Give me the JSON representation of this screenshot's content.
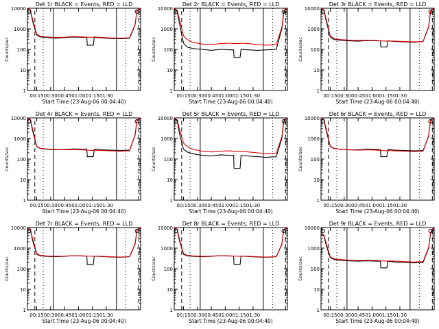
{
  "colors": {
    "events": "#000000",
    "lld": "#e00000",
    "axes": "#000000"
  },
  "chart_data": [
    {
      "type": "line",
      "title": "Det 1r BLACK = Events, RED = LLD",
      "xlabel": "Start Time (23-Aug-06 00:04:40)",
      "ylabel": "Counts/sec",
      "yscale": "log",
      "ylim": [
        1,
        10000
      ],
      "xticks": [
        "00:15",
        "00:30",
        "00:45",
        "01:00",
        "01:15",
        "01:30"
      ],
      "yticks": [
        "1",
        "10",
        "100",
        "1000",
        "10000"
      ],
      "series": [
        {
          "x": [
            0,
            3,
            6,
            10,
            14,
            20,
            30,
            40,
            50,
            60,
            64,
            64.5,
            71,
            72,
            80,
            90,
            100,
            110,
            116,
            118,
            120,
            122
          ],
          "values": [
            10000,
            8000,
            2000,
            500,
            400,
            380,
            350,
            370,
            400,
            380,
            380,
            160,
            160,
            380,
            360,
            340,
            330,
            350,
            1500,
            7000,
            9000,
            10000
          ]
        },
        {
          "x": [
            0,
            3,
            6,
            10,
            14,
            20,
            30,
            40,
            50,
            60,
            64,
            71,
            72,
            80,
            90,
            100,
            110,
            116,
            118,
            120,
            122
          ],
          "values": [
            10000,
            8500,
            2500,
            550,
            430,
            400,
            380,
            390,
            420,
            400,
            390,
            390,
            400,
            380,
            360,
            350,
            370,
            1600,
            7500,
            9500,
            10000
          ]
        }
      ]
    },
    {
      "type": "line",
      "title": "Det 2r BLACK = Events, RED = LLD",
      "xlabel": "Start Time (23-Aug-06 00:04:40)",
      "ylabel": "Counts/sec",
      "yscale": "log",
      "ylim": [
        1,
        10000
      ],
      "xticks": [
        "00:15",
        "00:30",
        "00:45",
        "01:00",
        "01:15",
        "01:30"
      ],
      "yticks": [
        "1",
        "10",
        "100",
        "1000",
        "10000"
      ],
      "series": [
        {
          "x": [
            0,
            3,
            6,
            10,
            14,
            20,
            30,
            40,
            50,
            60,
            64,
            64.5,
            71,
            72,
            80,
            90,
            100,
            110,
            116,
            118,
            120,
            122
          ],
          "values": [
            10000,
            7000,
            1500,
            200,
            130,
            110,
            100,
            90,
            100,
            95,
            95,
            40,
            40,
            100,
            95,
            90,
            95,
            100,
            1000,
            6000,
            9000,
            10000
          ]
        },
        {
          "x": [
            0,
            3,
            6,
            10,
            14,
            20,
            30,
            40,
            50,
            60,
            64,
            71,
            72,
            80,
            90,
            100,
            110,
            116,
            118,
            120,
            122
          ],
          "values": [
            10000,
            8000,
            2500,
            450,
            300,
            220,
            180,
            170,
            190,
            200,
            190,
            190,
            200,
            190,
            170,
            160,
            170,
            1200,
            7000,
            9500,
            10000
          ]
        }
      ]
    },
    {
      "type": "line",
      "title": "Det 3r BLACK = Events, RED = LLD",
      "xlabel": "Start Time (23-Aug-06 00:04:40)",
      "ylabel": "Counts/sec",
      "yscale": "log",
      "ylim": [
        1,
        10000
      ],
      "xticks": [
        "00:15",
        "00:30",
        "00:45",
        "01:00",
        "01:15",
        "01:30"
      ],
      "yticks": [
        "1",
        "10",
        "100",
        "1000",
        "10000"
      ],
      "series": [
        {
          "x": [
            0,
            3,
            6,
            10,
            14,
            20,
            30,
            40,
            50,
            60,
            64,
            64.5,
            71,
            72,
            80,
            90,
            100,
            110,
            116,
            118,
            120,
            122
          ],
          "values": [
            10000,
            8000,
            2000,
            400,
            300,
            280,
            260,
            250,
            270,
            260,
            260,
            130,
            130,
            260,
            240,
            230,
            220,
            240,
            1200,
            6500,
            9000,
            10000
          ]
        },
        {
          "x": [
            0,
            3,
            6,
            10,
            14,
            20,
            30,
            40,
            50,
            60,
            64,
            71,
            72,
            80,
            90,
            100,
            110,
            116,
            118,
            120,
            122
          ],
          "values": [
            10000,
            8500,
            2500,
            450,
            330,
            300,
            280,
            270,
            280,
            270,
            260,
            250,
            260,
            250,
            240,
            230,
            240,
            1300,
            7000,
            9500,
            10000
          ]
        }
      ]
    },
    {
      "type": "line",
      "title": "Det 4r BLACK = Events, RED = LLD",
      "xlabel": "Start Time (23-Aug-06 00:04:40)",
      "ylabel": "Counts/sec",
      "yscale": "log",
      "ylim": [
        1,
        10000
      ],
      "xticks": [
        "00:15",
        "00:30",
        "00:45",
        "01:00",
        "01:15",
        "01:30"
      ],
      "yticks": [
        "1",
        "10",
        "100",
        "1000",
        "10000"
      ],
      "series": [
        {
          "x": [
            0,
            3,
            6,
            10,
            14,
            20,
            30,
            40,
            50,
            60,
            64,
            64.5,
            71,
            72,
            80,
            90,
            100,
            110,
            116,
            118,
            120,
            122
          ],
          "values": [
            10000,
            8000,
            2000,
            400,
            320,
            300,
            280,
            290,
            310,
            300,
            300,
            130,
            130,
            300,
            280,
            270,
            260,
            270,
            1400,
            7000,
            9000,
            10000
          ]
        },
        {
          "x": [
            0,
            3,
            6,
            10,
            14,
            20,
            30,
            40,
            50,
            60,
            64,
            71,
            72,
            80,
            90,
            100,
            110,
            116,
            118,
            120,
            122
          ],
          "values": [
            10000,
            8500,
            2500,
            420,
            330,
            310,
            290,
            280,
            290,
            280,
            270,
            260,
            270,
            260,
            250,
            240,
            250,
            1500,
            7500,
            9500,
            10000
          ]
        }
      ]
    },
    {
      "type": "line",
      "title": "Det 5r BLACK = Events, RED = LLD",
      "xlabel": "Start Time (23-Aug-06 00:04:40)",
      "ylabel": "Counts/sec",
      "yscale": "log",
      "ylim": [
        1,
        10000
      ],
      "xticks": [
        "00:15",
        "00:30",
        "00:45",
        "01:00",
        "01:15",
        "01:30"
      ],
      "yticks": [
        "1",
        "10",
        "100",
        "1000",
        "10000"
      ],
      "series": [
        {
          "x": [
            0,
            3,
            6,
            10,
            14,
            20,
            30,
            40,
            50,
            60,
            64,
            64.5,
            71,
            72,
            80,
            90,
            100,
            110,
            116,
            118,
            120,
            122
          ],
          "values": [
            10000,
            7000,
            1500,
            300,
            220,
            180,
            150,
            140,
            160,
            150,
            150,
            35,
            35,
            150,
            140,
            130,
            120,
            130,
            1000,
            6000,
            9000,
            10000
          ]
        },
        {
          "x": [
            0,
            3,
            6,
            10,
            14,
            20,
            30,
            40,
            50,
            60,
            64,
            71,
            72,
            80,
            90,
            100,
            110,
            116,
            118,
            120,
            122
          ],
          "values": [
            10000,
            8000,
            2500,
            600,
            400,
            300,
            240,
            220,
            240,
            250,
            240,
            230,
            240,
            220,
            200,
            180,
            190,
            1200,
            7000,
            9500,
            10000
          ]
        }
      ]
    },
    {
      "type": "line",
      "title": "Det 6r BLACK = Events, RED = LLD",
      "xlabel": "Start Time (23-Aug-06 00:04:40)",
      "ylabel": "Counts/sec",
      "yscale": "log",
      "ylim": [
        1,
        10000
      ],
      "xticks": [
        "00:15",
        "00:30",
        "00:45",
        "01:00",
        "01:15",
        "01:30"
      ],
      "yticks": [
        "1",
        "10",
        "100",
        "1000",
        "10000"
      ],
      "series": [
        {
          "x": [
            0,
            3,
            6,
            10,
            14,
            20,
            30,
            40,
            50,
            60,
            64,
            64.5,
            71,
            72,
            80,
            90,
            100,
            110,
            116,
            118,
            120,
            122
          ],
          "values": [
            10000,
            8000,
            2000,
            400,
            320,
            300,
            280,
            280,
            300,
            290,
            290,
            130,
            130,
            290,
            270,
            260,
            250,
            260,
            1300,
            7000,
            9000,
            10000
          ]
        },
        {
          "x": [
            0,
            3,
            6,
            10,
            14,
            20,
            30,
            40,
            50,
            60,
            64,
            71,
            72,
            80,
            90,
            100,
            110,
            116,
            118,
            120,
            122
          ],
          "values": [
            10000,
            8500,
            2500,
            420,
            330,
            300,
            280,
            270,
            280,
            270,
            260,
            250,
            260,
            250,
            240,
            230,
            240,
            1400,
            7500,
            9500,
            10000
          ]
        }
      ]
    },
    {
      "type": "line",
      "title": "Det 7r BLACK = Events, RED = LLD",
      "xlabel": "Start Time (23-Aug-06 00:04:40)",
      "ylabel": "Counts/sec",
      "yscale": "log",
      "ylim": [
        1,
        10000
      ],
      "xticks": [
        "00:15",
        "00:30",
        "00:45",
        "01:00",
        "01:15",
        "01:30"
      ],
      "yticks": [
        "1",
        "10",
        "100",
        "1000",
        "10000"
      ],
      "series": [
        {
          "x": [
            0,
            3,
            6,
            10,
            14,
            20,
            30,
            40,
            50,
            60,
            64,
            64.5,
            71,
            72,
            80,
            90,
            100,
            110,
            116,
            118,
            120,
            122
          ],
          "values": [
            10000,
            8000,
            2000,
            500,
            420,
            400,
            380,
            400,
            430,
            410,
            410,
            160,
            160,
            410,
            390,
            370,
            360,
            380,
            1500,
            7000,
            9000,
            10000
          ]
        },
        {
          "x": [
            0,
            3,
            6,
            10,
            14,
            20,
            30,
            40,
            50,
            60,
            64,
            71,
            72,
            80,
            90,
            100,
            110,
            116,
            118,
            120,
            122
          ],
          "values": [
            10000,
            8500,
            2500,
            550,
            440,
            420,
            400,
            410,
            430,
            420,
            410,
            400,
            410,
            400,
            380,
            370,
            390,
            1600,
            7500,
            9500,
            10000
          ]
        }
      ]
    },
    {
      "type": "line",
      "title": "Det 8r BLACK = Events, RED = LLD",
      "xlabel": "Start Time (23-Aug-06 00:04:40)",
      "ylabel": "Counts/sec",
      "yscale": "log",
      "ylim": [
        1,
        10000
      ],
      "xticks": [
        "00:15",
        "00:30",
        "00:45",
        "01:00",
        "01:15",
        "01:30"
      ],
      "yticks": [
        "1",
        "10",
        "100",
        "1000",
        "10000"
      ],
      "series": [
        {
          "x": [
            0,
            3,
            6,
            10,
            14,
            20,
            30,
            40,
            50,
            60,
            64,
            64.5,
            71,
            72,
            80,
            90,
            100,
            110,
            116,
            118,
            120,
            122
          ],
          "values": [
            10000,
            8000,
            2000,
            500,
            420,
            400,
            380,
            400,
            430,
            410,
            410,
            160,
            160,
            410,
            390,
            370,
            360,
            380,
            1500,
            7000,
            9000,
            10000
          ]
        },
        {
          "x": [
            0,
            3,
            6,
            10,
            14,
            20,
            30,
            40,
            50,
            60,
            64,
            71,
            72,
            80,
            90,
            100,
            110,
            116,
            118,
            120,
            122
          ],
          "values": [
            10000,
            8500,
            2500,
            550,
            440,
            420,
            400,
            410,
            430,
            420,
            410,
            400,
            410,
            400,
            380,
            370,
            390,
            1600,
            7500,
            9500,
            10000
          ]
        }
      ]
    },
    {
      "type": "line",
      "title": "Det 9r BLACK = Events, RED = LLD",
      "xlabel": "Start Time (23-Aug-06 00:04:40)",
      "ylabel": "Counts/sec",
      "yscale": "log",
      "ylim": [
        1,
        10000
      ],
      "xticks": [
        "00:15",
        "00:30",
        "00:45",
        "01:00",
        "01:15",
        "01:30"
      ],
      "yticks": [
        "1",
        "10",
        "100",
        "1000",
        "10000"
      ],
      "series": [
        {
          "x": [
            0,
            3,
            6,
            10,
            14,
            20,
            30,
            40,
            50,
            60,
            64,
            64.5,
            71,
            72,
            80,
            90,
            100,
            110,
            116,
            118,
            120,
            122
          ],
          "values": [
            5000,
            4000,
            1200,
            350,
            280,
            260,
            240,
            230,
            240,
            230,
            230,
            110,
            110,
            230,
            210,
            200,
            190,
            200,
            1000,
            5000,
            8000,
            10000
          ]
        },
        {
          "x": [
            0,
            3,
            6,
            10,
            14,
            20,
            30,
            40,
            50,
            60,
            64,
            71,
            72,
            80,
            90,
            100,
            110,
            116,
            118,
            120,
            122
          ],
          "values": [
            5000,
            4500,
            1500,
            380,
            300,
            280,
            260,
            250,
            260,
            250,
            240,
            230,
            240,
            230,
            220,
            210,
            220,
            1100,
            5500,
            8500,
            10000
          ]
        }
      ]
    }
  ]
}
